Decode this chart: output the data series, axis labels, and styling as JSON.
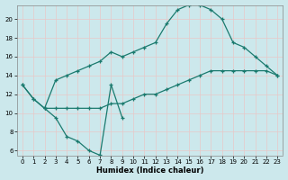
{
  "xlabel": "Humidex (Indice chaleur)",
  "bg_color": "#cce8ec",
  "grid_color": "#b0d4d8",
  "line_color": "#1a7a6e",
  "xlim": [
    -0.5,
    23.5
  ],
  "ylim": [
    5.5,
    21.5
  ],
  "xticks": [
    0,
    1,
    2,
    3,
    4,
    5,
    6,
    7,
    8,
    9,
    10,
    11,
    12,
    13,
    14,
    15,
    16,
    17,
    18,
    19,
    20,
    21,
    22,
    23
  ],
  "yticks": [
    6,
    8,
    10,
    12,
    14,
    16,
    18,
    20
  ],
  "series": [
    {
      "x": [
        0,
        1,
        2,
        3,
        4,
        5,
        6,
        7,
        8,
        9
      ],
      "y": [
        13,
        11.5,
        10.5,
        9.5,
        7.5,
        7.0,
        6.0,
        5.5,
        13.0,
        9.5
      ]
    },
    {
      "x": [
        0,
        1,
        2,
        3,
        4,
        5,
        6,
        7,
        8,
        9,
        10,
        11,
        12,
        13,
        14,
        15,
        16,
        17,
        18,
        19,
        20,
        21,
        22,
        23
      ],
      "y": [
        13,
        11.5,
        10.5,
        13.5,
        14.0,
        14.5,
        15.0,
        15.5,
        16.5,
        16.0,
        16.5,
        17.0,
        17.5,
        19.5,
        21.0,
        21.5,
        21.5,
        21.0,
        20.0,
        17.5,
        17.0,
        16.0,
        15.0,
        14.0
      ]
    },
    {
      "x": [
        2,
        3,
        4,
        5,
        6,
        7,
        8,
        9,
        10,
        11,
        12,
        13,
        14,
        15,
        16,
        17,
        18,
        19,
        20,
        21,
        22,
        23
      ],
      "y": [
        10.5,
        10.5,
        10.5,
        10.5,
        10.5,
        10.5,
        11.0,
        11.0,
        11.5,
        12.0,
        12.0,
        12.5,
        13.0,
        13.5,
        14.0,
        14.5,
        14.5,
        14.5,
        14.5,
        14.5,
        14.5,
        14.0
      ]
    }
  ]
}
